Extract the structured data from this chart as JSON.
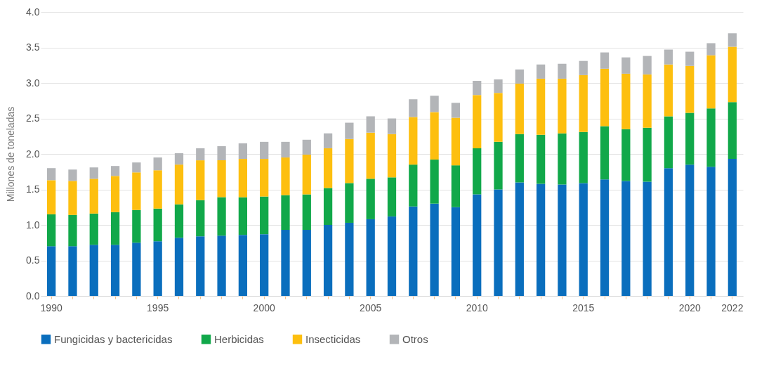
{
  "chart_data": {
    "type": "bar",
    "stacked": true,
    "ylabel": "Millones de toneladas",
    "categories": [
      "1990",
      null,
      null,
      null,
      null,
      "1995",
      null,
      null,
      null,
      null,
      "2000",
      null,
      null,
      null,
      null,
      "2005",
      null,
      null,
      null,
      null,
      "2010",
      null,
      null,
      null,
      null,
      "2015",
      null,
      null,
      null,
      null,
      "2020",
      null,
      "2022"
    ],
    "series": [
      {
        "name": "Fungicidas y bactericidas",
        "color": "#0a6ebd",
        "values": [
          0.7,
          0.7,
          0.72,
          0.72,
          0.75,
          0.77,
          0.82,
          0.84,
          0.85,
          0.86,
          0.87,
          0.93,
          0.93,
          1.0,
          1.03,
          1.08,
          1.12,
          1.26,
          1.3,
          1.25,
          1.43,
          1.5,
          1.6,
          1.58,
          1.57,
          1.59,
          1.64,
          1.62,
          1.61,
          1.8,
          1.85,
          1.82,
          1.93
        ]
      },
      {
        "name": "Herbicidas",
        "color": "#11a84a",
        "values": [
          0.45,
          0.44,
          0.44,
          0.46,
          0.46,
          0.46,
          0.47,
          0.51,
          0.54,
          0.53,
          0.53,
          0.49,
          0.5,
          0.52,
          0.56,
          0.57,
          0.55,
          0.59,
          0.62,
          0.59,
          0.65,
          0.67,
          0.68,
          0.69,
          0.72,
          0.72,
          0.75,
          0.73,
          0.76,
          0.73,
          0.73,
          0.82,
          0.8
        ]
      },
      {
        "name": "Insecticidas",
        "color": "#fdbf0f",
        "values": [
          0.48,
          0.48,
          0.49,
          0.51,
          0.53,
          0.54,
          0.56,
          0.56,
          0.52,
          0.54,
          0.53,
          0.53,
          0.56,
          0.56,
          0.62,
          0.65,
          0.61,
          0.67,
          0.67,
          0.67,
          0.75,
          0.69,
          0.71,
          0.79,
          0.77,
          0.8,
          0.81,
          0.78,
          0.75,
          0.73,
          0.66,
          0.75,
          0.78
        ]
      },
      {
        "name": "Otros",
        "color": "#b3b5b8",
        "values": [
          0.17,
          0.16,
          0.16,
          0.14,
          0.14,
          0.18,
          0.16,
          0.17,
          0.2,
          0.22,
          0.24,
          0.22,
          0.21,
          0.21,
          0.23,
          0.23,
          0.22,
          0.25,
          0.23,
          0.21,
          0.2,
          0.19,
          0.2,
          0.2,
          0.21,
          0.2,
          0.23,
          0.23,
          0.26,
          0.21,
          0.2,
          0.17,
          0.19
        ]
      }
    ],
    "ylim": [
      0,
      4
    ],
    "yticks": [
      {
        "value": 0,
        "label": "0.0"
      },
      0.5,
      {
        "value": 1,
        "label": "1.0"
      },
      1.5,
      {
        "value": 2,
        "label": "2.0"
      },
      2.5,
      {
        "value": 3,
        "label": "3.0"
      },
      3.5,
      {
        "value": 4,
        "label": "4.0"
      }
    ],
    "grid": "y",
    "legend": "bottom"
  }
}
